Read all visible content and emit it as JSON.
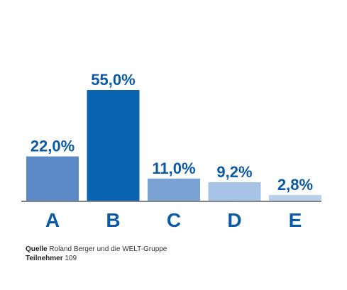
{
  "chart_data": {
    "type": "bar",
    "categories": [
      "A",
      "B",
      "C",
      "D",
      "E"
    ],
    "values": [
      22.0,
      55.0,
      11.0,
      9.2,
      2.8
    ],
    "value_labels": [
      "22,0%",
      "55,0%",
      "11,0%",
      "9,2%",
      "2,8%"
    ],
    "colors": [
      "#5b8ac7",
      "#0a63b0",
      "#7aa3d4",
      "#a7c3e5",
      "#b9d0ec"
    ],
    "label_color": "#0a5aa6",
    "ylim": [
      0,
      55
    ],
    "grid": false
  },
  "footer": {
    "source_label": "Quelle",
    "source_text": " Roland Berger und die WELT-Gruppe",
    "participants_label": "Teilnehmer",
    "participants_text": " 109"
  }
}
